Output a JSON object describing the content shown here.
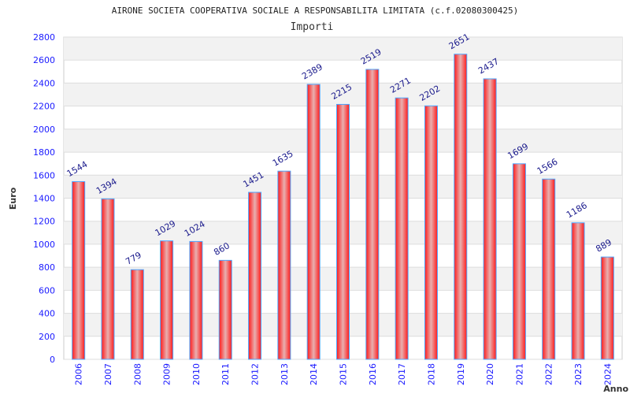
{
  "chart_data": {
    "type": "bar",
    "title": "AIRONE SOCIETA COOPERATIVA SOCIALE A RESPONSABILITA LIMITATA (c.f.02080300425)",
    "subtitle": "Importi",
    "xlabel": "Anno",
    "ylabel": "Euro",
    "ylim": [
      0,
      2800
    ],
    "yticks": [
      0,
      200,
      400,
      600,
      800,
      1000,
      1200,
      1400,
      1600,
      1800,
      2000,
      2200,
      2400,
      2600,
      2800
    ],
    "categories": [
      "2006",
      "2007",
      "2008",
      "2009",
      "2010",
      "2011",
      "2012",
      "2013",
      "2014",
      "2015",
      "2016",
      "2017",
      "2018",
      "2019",
      "2020",
      "2021",
      "2022",
      "2023",
      "2024"
    ],
    "values": [
      1544,
      1394,
      779,
      1029,
      1024,
      860,
      1451,
      1635,
      2389,
      2215,
      2519,
      2271,
      2202,
      2651,
      2437,
      1699,
      1566,
      1186,
      889
    ],
    "grid": true,
    "colors": {
      "bar": "#ff2020",
      "bar_highlight": "#e8b0b0",
      "bar_border": "#4da6ff",
      "band": "#f2f2f2",
      "grid": "#dddddd"
    }
  }
}
